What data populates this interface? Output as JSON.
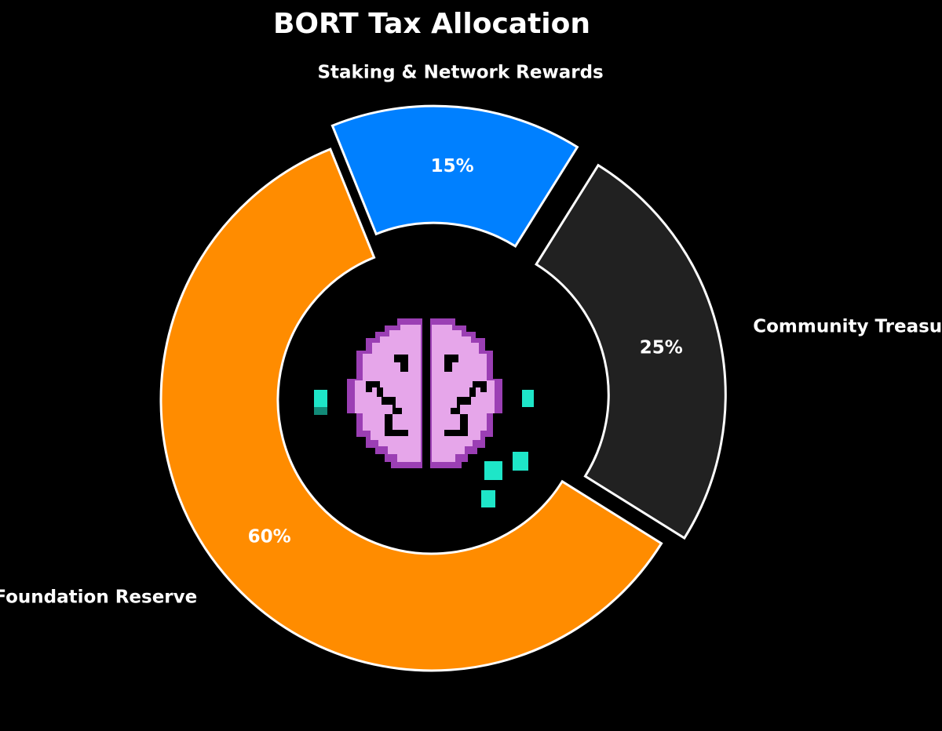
{
  "chart_data": {
    "type": "pie",
    "style": "exploded donut",
    "title": "BORT Tax Allocation",
    "categories": [
      "Foundation Reserve",
      "Staking & Network Rewards",
      "Community Treasury"
    ],
    "values": [
      60,
      15,
      25
    ],
    "value_labels": [
      "60%",
      "15%",
      "25%"
    ],
    "colors": [
      "#ff8c00",
      "#0080ff",
      "#212121"
    ],
    "edge_color": "#ffffff",
    "background": "#000000",
    "center_image": "pixel-brain-logo"
  }
}
